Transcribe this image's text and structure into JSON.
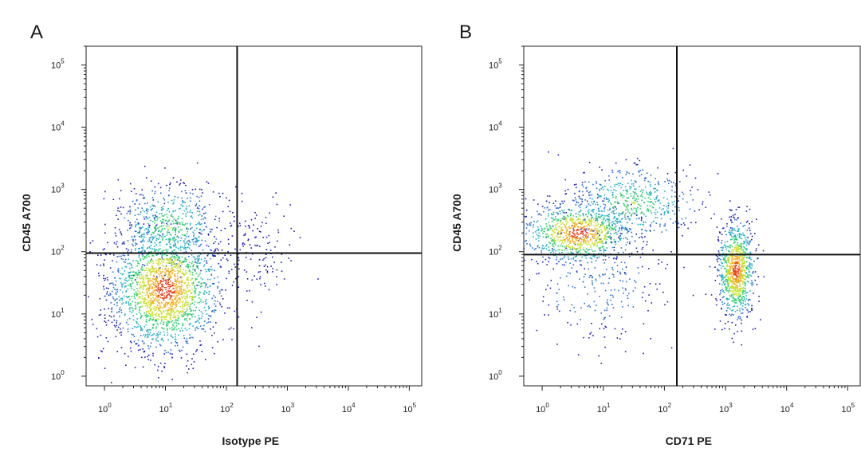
{
  "figure": {
    "panels": [
      "A",
      "B"
    ]
  },
  "chart_data": [
    {
      "panel_label": "A",
      "type": "scatter",
      "title": "",
      "xlabel": "Isotype PE",
      "ylabel": "CD45 A700",
      "xscale": "log",
      "yscale": "log",
      "xlim": [
        0.5,
        160000
      ],
      "ylim": [
        0.7,
        200000
      ],
      "x_ticks": [
        {
          "base": "10",
          "exp": "0",
          "value": 1
        },
        {
          "base": "10",
          "exp": "1",
          "value": 10
        },
        {
          "base": "10",
          "exp": "2",
          "value": 100
        },
        {
          "base": "10",
          "exp": "3",
          "value": 1000
        },
        {
          "base": "10",
          "exp": "4",
          "value": 10000
        },
        {
          "base": "10",
          "exp": "5",
          "value": 100000
        }
      ],
      "y_ticks": [
        {
          "base": "10",
          "exp": "0",
          "value": 1
        },
        {
          "base": "10",
          "exp": "1",
          "value": 10
        },
        {
          "base": "10",
          "exp": "2",
          "value": 100
        },
        {
          "base": "10",
          "exp": "3",
          "value": 1000
        },
        {
          "base": "10",
          "exp": "4",
          "value": 10000
        },
        {
          "base": "10",
          "exp": "5",
          "value": 100000
        }
      ],
      "quadrant_gates": {
        "x": 150,
        "y": 95
      },
      "grid": false,
      "legend": "none",
      "colormap": [
        "#1c1cb4",
        "#2b6fd6",
        "#22b0c8",
        "#2ecf6e",
        "#c8e02a",
        "#f0b020",
        "#e8401c"
      ],
      "populations": [
        {
          "cx": 10,
          "cy": 25,
          "spread_x": 0.45,
          "spread_y": 0.5,
          "weight": 0.75
        },
        {
          "cx": 12,
          "cy": 250,
          "spread_x": 0.45,
          "spread_y": 0.35,
          "weight": 0.2
        },
        {
          "cx": 300,
          "cy": 100,
          "spread_x": 0.35,
          "spread_y": 0.4,
          "weight": 0.05
        }
      ]
    },
    {
      "panel_label": "B",
      "type": "scatter",
      "title": "",
      "xlabel": "CD71 PE",
      "ylabel": "CD45 A700",
      "xscale": "log",
      "yscale": "log",
      "xlim": [
        0.5,
        160000
      ],
      "ylim": [
        0.7,
        200000
      ],
      "x_ticks": [
        {
          "base": "10",
          "exp": "0",
          "value": 1
        },
        {
          "base": "10",
          "exp": "1",
          "value": 10
        },
        {
          "base": "10",
          "exp": "2",
          "value": 100
        },
        {
          "base": "10",
          "exp": "3",
          "value": 1000
        },
        {
          "base": "10",
          "exp": "4",
          "value": 10000
        },
        {
          "base": "10",
          "exp": "5",
          "value": 100000
        }
      ],
      "y_ticks": [
        {
          "base": "10",
          "exp": "0",
          "value": 1
        },
        {
          "base": "10",
          "exp": "1",
          "value": 10
        },
        {
          "base": "10",
          "exp": "2",
          "value": 100
        },
        {
          "base": "10",
          "exp": "3",
          "value": 1000
        },
        {
          "base": "10",
          "exp": "4",
          "value": 10000
        },
        {
          "base": "10",
          "exp": "5",
          "value": 100000
        }
      ],
      "quadrant_gates": {
        "x": 160,
        "y": 90
      },
      "grid": false,
      "legend": "none",
      "colormap": [
        "#1c1cb4",
        "#2b6fd6",
        "#22b0c8",
        "#2ecf6e",
        "#c8e02a",
        "#f0b020",
        "#e8401c"
      ],
      "populations": [
        {
          "cx": 4,
          "cy": 200,
          "spread_x": 0.45,
          "spread_y": 0.25,
          "weight": 0.35
        },
        {
          "cx": 30,
          "cy": 600,
          "spread_x": 0.55,
          "spread_y": 0.3,
          "weight": 0.2
        },
        {
          "cx": 1500,
          "cy": 50,
          "spread_x": 0.15,
          "spread_y": 0.4,
          "weight": 0.35
        },
        {
          "cx": 8,
          "cy": 30,
          "spread_x": 0.6,
          "spread_y": 0.5,
          "weight": 0.1
        }
      ]
    }
  ]
}
